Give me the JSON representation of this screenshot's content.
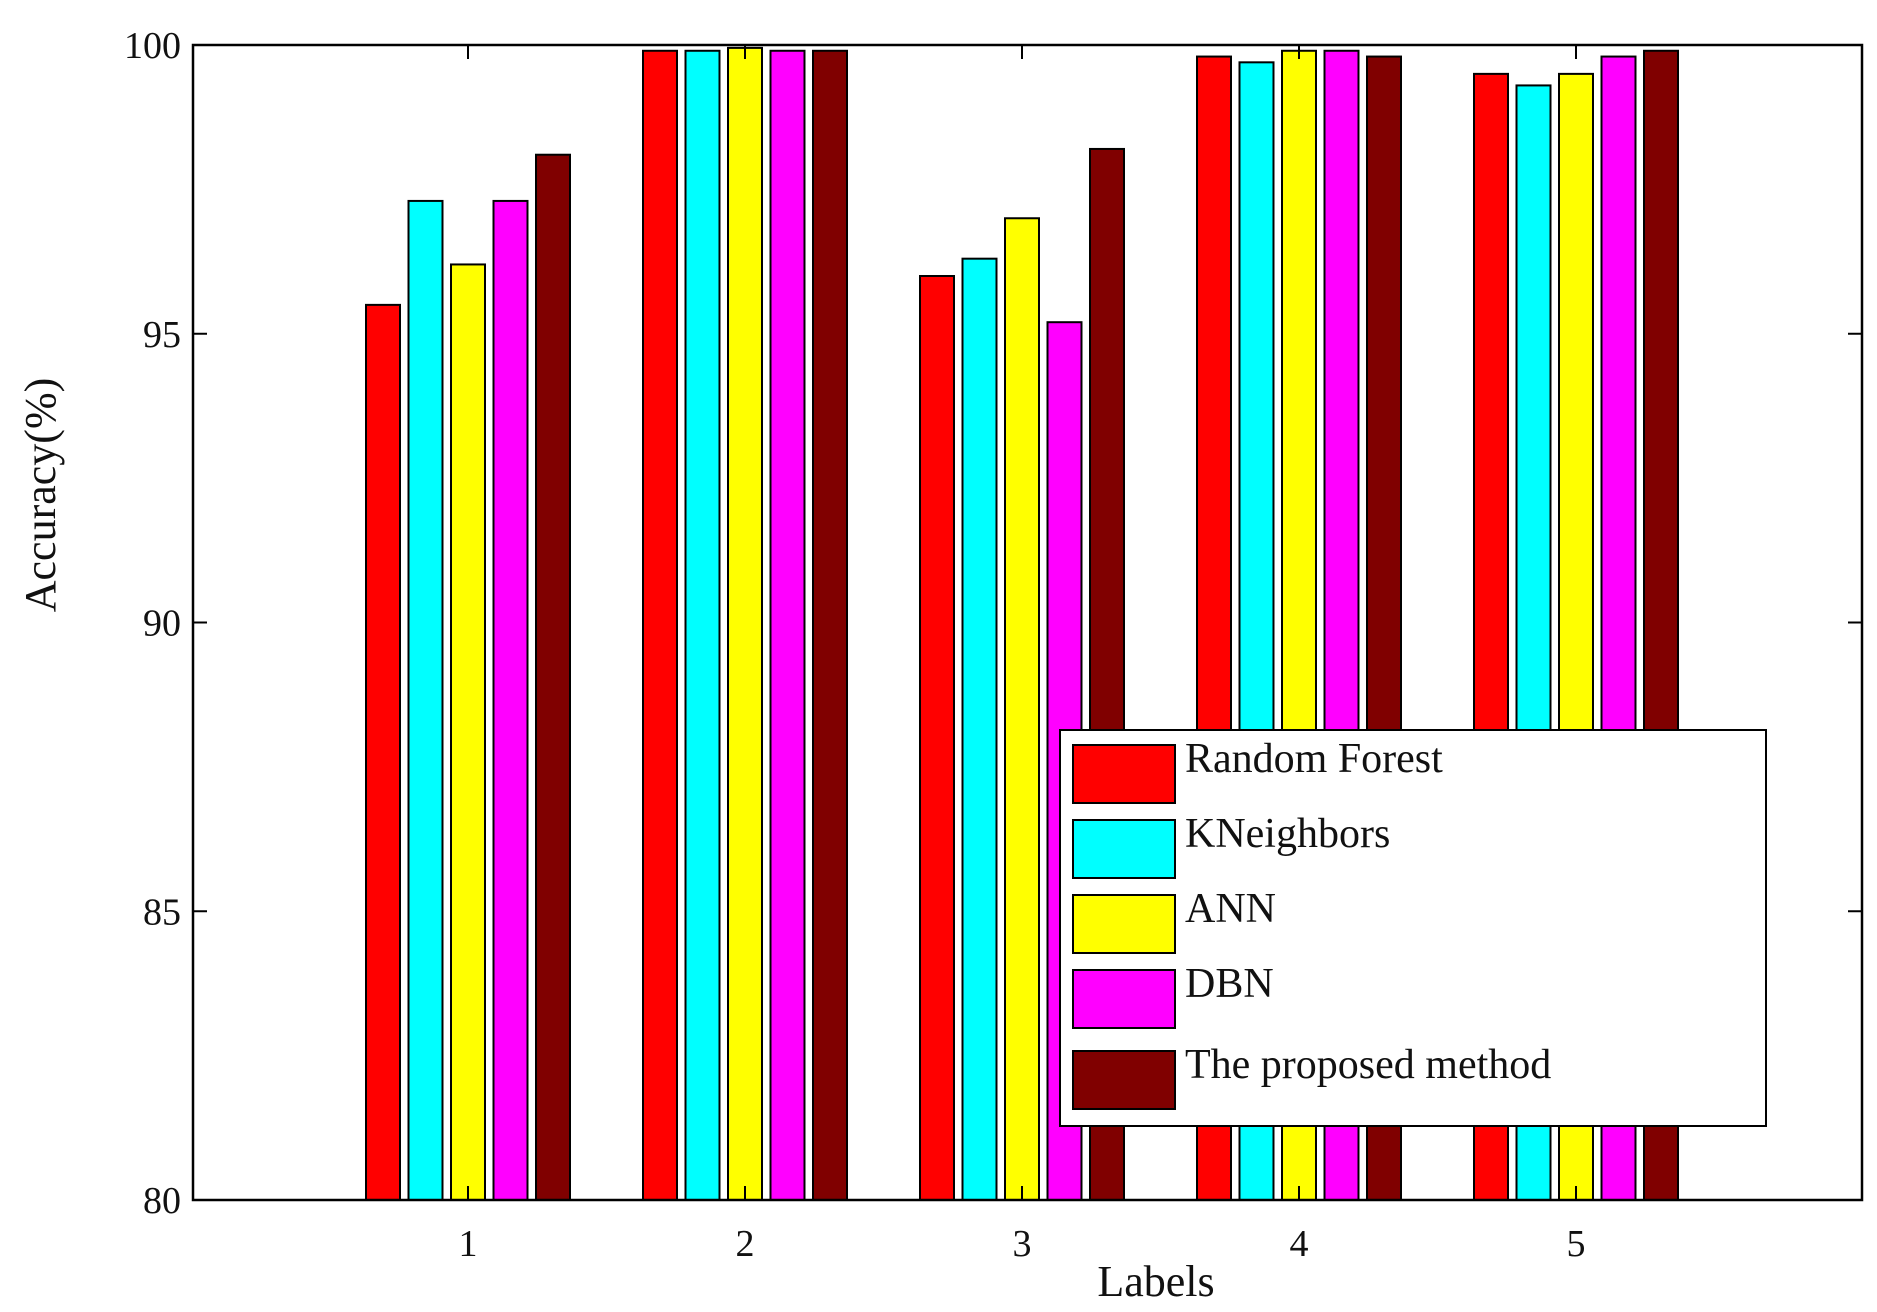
{
  "chart_data": {
    "type": "bar",
    "title": "",
    "xlabel": "Labels",
    "ylabel": "Accuracy(%)",
    "ylim": [
      80,
      100
    ],
    "yticks": [
      80,
      85,
      90,
      95,
      100
    ],
    "categories": [
      "1",
      "2",
      "3",
      "4",
      "5"
    ],
    "series": [
      {
        "name": "Random Forest",
        "color": "#ff0000",
        "values": [
          95.5,
          99.9,
          96.0,
          99.8,
          99.5
        ]
      },
      {
        "name": "KNeighbors",
        "color": "#00ffff",
        "values": [
          97.3,
          99.9,
          96.3,
          99.7,
          99.3
        ]
      },
      {
        "name": "ANN",
        "color": "#ffff00",
        "values": [
          96.2,
          99.95,
          97.0,
          99.9,
          99.5
        ]
      },
      {
        "name": "DBN",
        "color": "#ff00ff",
        "values": [
          97.3,
          99.9,
          95.2,
          99.9,
          99.8
        ]
      },
      {
        "name": "The proposed method",
        "color": "#800000",
        "values": [
          98.1,
          99.9,
          98.2,
          99.8,
          99.9
        ]
      }
    ],
    "legend_position": "bottom-right",
    "grid": false
  }
}
